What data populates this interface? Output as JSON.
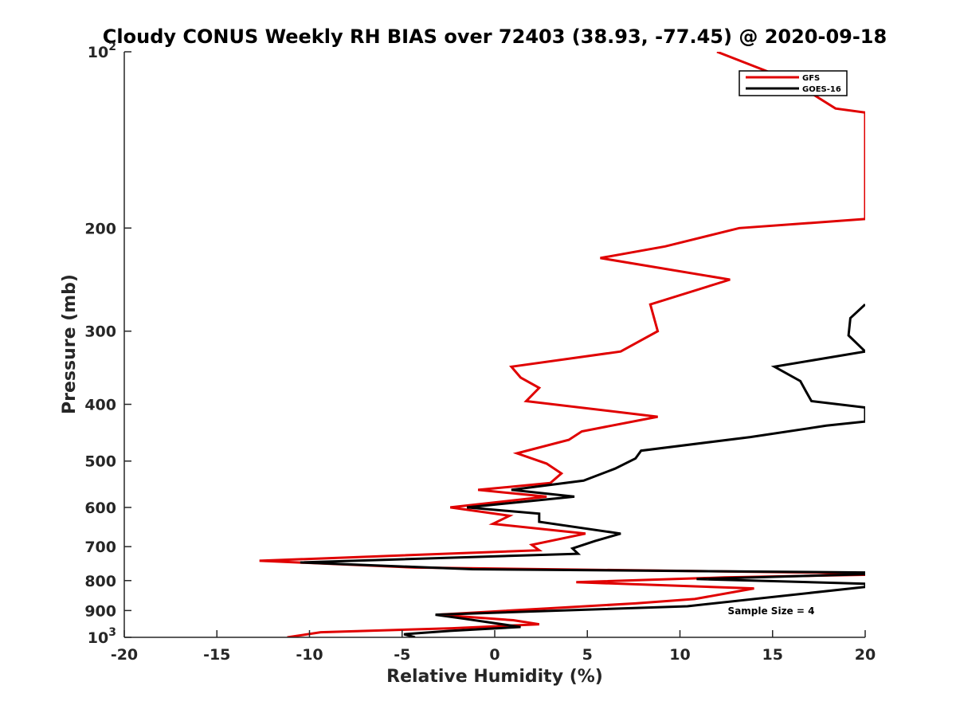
{
  "chart_data": {
    "type": "line",
    "title": "Cloudy CONUS Weekly RH BIAS over 72403 (38.93, -77.45) @ 2020-09-18",
    "xlabel": "Relative Humidity (%)",
    "ylabel": "Pressure (mb)",
    "xlim": [
      -20,
      20
    ],
    "ylim": [
      1000,
      100
    ],
    "y_scale": "log",
    "y_reversed": true,
    "grid": false,
    "legend_position": "top-right",
    "x_ticks": [
      -20,
      -15,
      -10,
      -5,
      0,
      5,
      10,
      15,
      20
    ],
    "x_tick_labels": [
      "-20",
      "-15",
      "-10",
      "-5",
      "0",
      "5",
      "10",
      "15",
      "20"
    ],
    "y_ticks": [
      100,
      200,
      300,
      400,
      500,
      600,
      700,
      800,
      900,
      1000
    ],
    "y_tick_labels": [
      {
        "base": "10",
        "exp": "2"
      },
      {
        "base": "200",
        "exp": ""
      },
      {
        "base": "300",
        "exp": ""
      },
      {
        "base": "400",
        "exp": ""
      },
      {
        "base": "500",
        "exp": ""
      },
      {
        "base": "600",
        "exp": ""
      },
      {
        "base": "700",
        "exp": ""
      },
      {
        "base": "800",
        "exp": ""
      },
      {
        "base": "900",
        "exp": ""
      },
      {
        "base": "10",
        "exp": "3"
      }
    ],
    "annotation": "Sample Size = 4",
    "series": [
      {
        "name": "GFS",
        "color": "#e00000",
        "points": [
          [
            12.0,
            100
          ],
          [
            16.0,
            112
          ],
          [
            18.4,
            125
          ],
          [
            20.0,
            127
          ],
          [
            20.0,
            193
          ],
          [
            13.2,
            200
          ],
          [
            9.2,
            215
          ],
          [
            5.7,
            225
          ],
          [
            12.7,
            245
          ],
          [
            8.4,
            270
          ],
          [
            8.8,
            300
          ],
          [
            6.8,
            325
          ],
          [
            0.9,
            345
          ],
          [
            1.4,
            360
          ],
          [
            2.4,
            375
          ],
          [
            1.7,
            395
          ],
          [
            8.8,
            420
          ],
          [
            4.7,
            445
          ],
          [
            4.0,
            460
          ],
          [
            1.2,
            485
          ],
          [
            2.8,
            505
          ],
          [
            3.6,
            525
          ],
          [
            3.0,
            545
          ],
          [
            -0.9,
            560
          ],
          [
            2.8,
            575
          ],
          [
            -2.4,
            600
          ],
          [
            0.8,
            620
          ],
          [
            -0.1,
            640
          ],
          [
            4.9,
            665
          ],
          [
            2.0,
            695
          ],
          [
            2.4,
            710
          ],
          [
            -12.7,
            740
          ],
          [
            -4.3,
            760
          ],
          [
            16.9,
            775
          ],
          [
            20.0,
            778
          ],
          [
            20.0,
            782
          ],
          [
            12.4,
            790
          ],
          [
            4.4,
            805
          ],
          [
            14.0,
            825
          ],
          [
            10.8,
            860
          ],
          [
            7.6,
            875
          ],
          [
            -3.1,
            915
          ],
          [
            1.0,
            935
          ],
          [
            2.4,
            950
          ],
          [
            -2.3,
            965
          ],
          [
            -9.4,
            980
          ],
          [
            -11.2,
            1000
          ]
        ]
      },
      {
        "name": "GOES-16",
        "color": "#000000",
        "points": [
          [
            20.0,
            270
          ],
          [
            19.2,
            285
          ],
          [
            19.1,
            305
          ],
          [
            20.0,
            325
          ],
          [
            15.1,
            345
          ],
          [
            16.5,
            365
          ],
          [
            16.8,
            380
          ],
          [
            17.1,
            395
          ],
          [
            20.0,
            405
          ],
          [
            20.0,
            428
          ],
          [
            17.9,
            435
          ],
          [
            13.8,
            455
          ],
          [
            7.9,
            480
          ],
          [
            7.6,
            495
          ],
          [
            6.5,
            515
          ],
          [
            4.8,
            540
          ],
          [
            0.9,
            560
          ],
          [
            4.3,
            575
          ],
          [
            -1.5,
            600
          ],
          [
            2.4,
            615
          ],
          [
            2.4,
            635
          ],
          [
            6.8,
            665
          ],
          [
            5.4,
            685
          ],
          [
            4.2,
            705
          ],
          [
            4.5,
            720
          ],
          [
            -10.5,
            745
          ],
          [
            -1.2,
            765
          ],
          [
            20.0,
            775
          ],
          [
            20.0,
            780
          ],
          [
            10.9,
            795
          ],
          [
            20.0,
            810
          ],
          [
            20.0,
            820
          ],
          [
            10.4,
            885
          ],
          [
            -3.2,
            915
          ],
          [
            -1.6,
            930
          ],
          [
            1.4,
            960
          ],
          [
            -2.4,
            975
          ],
          [
            -4.9,
            988
          ],
          [
            -4.3,
            1000
          ]
        ]
      }
    ]
  }
}
